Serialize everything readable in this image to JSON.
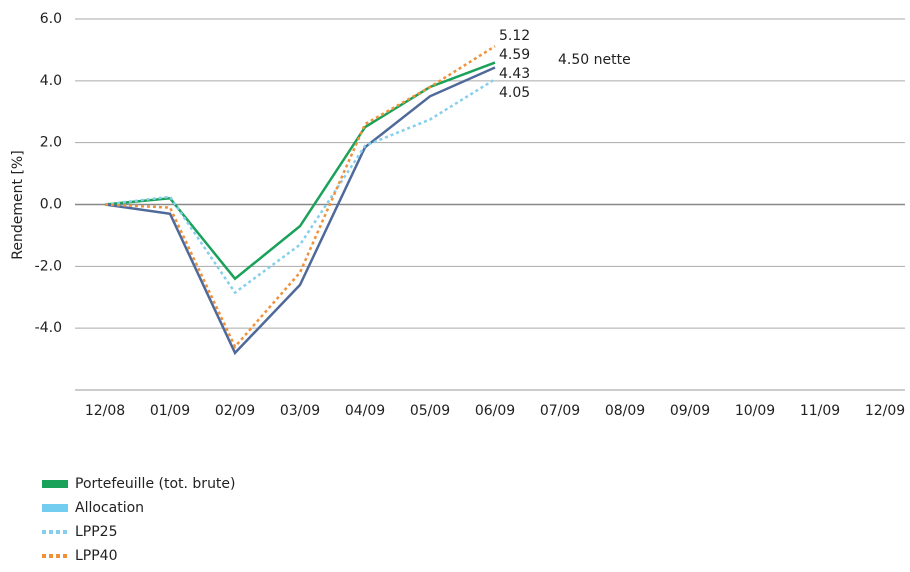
{
  "chart_data": {
    "type": "line",
    "y_label": "Rendement [%]",
    "annotation": "4.50 nette",
    "categories": [
      "12/08",
      "01/09",
      "02/09",
      "03/09",
      "04/09",
      "05/09",
      "06/09",
      "07/09",
      "08/09",
      "09/09",
      "10/09",
      "11/09",
      "12/09"
    ],
    "series": [
      {
        "name": "Portefeuille (tot. brute)",
        "color": "#1aa15a",
        "style": "solid",
        "values": [
          0,
          0.2,
          -2.4,
          -0.7,
          2.5,
          3.8,
          4.59,
          null,
          null,
          null,
          null,
          null,
          null
        ]
      },
      {
        "name": "Allocation",
        "color": "#4f6a9a",
        "legend_color": "#72cdf0",
        "style": "solid",
        "values": [
          0,
          -0.3,
          -4.8,
          -2.6,
          1.85,
          3.5,
          4.43,
          null,
          null,
          null,
          null,
          null,
          null
        ]
      },
      {
        "name": "LPP25",
        "color": "#86cfec",
        "style": "dotted",
        "values": [
          0,
          0.25,
          -2.85,
          -1.3,
          1.9,
          2.75,
          4.05,
          null,
          null,
          null,
          null,
          null,
          null
        ]
      },
      {
        "name": "LPP40",
        "color": "#f0913a",
        "style": "dotted",
        "values": [
          0,
          -0.1,
          -4.6,
          -2.2,
          2.6,
          3.8,
          5.12,
          null,
          null,
          null,
          null,
          null,
          null
        ]
      }
    ],
    "ylim": [
      -6,
      6
    ],
    "yticks": [
      {
        "value": 6,
        "label": "6.0"
      },
      {
        "value": 4,
        "label": "4.0"
      },
      {
        "value": 2,
        "label": "2.0"
      },
      {
        "value": 0,
        "label": "0.0"
      },
      {
        "value": -2,
        "label": "-2.0"
      },
      {
        "value": -4,
        "label": "-4.0"
      }
    ],
    "grid": true
  }
}
